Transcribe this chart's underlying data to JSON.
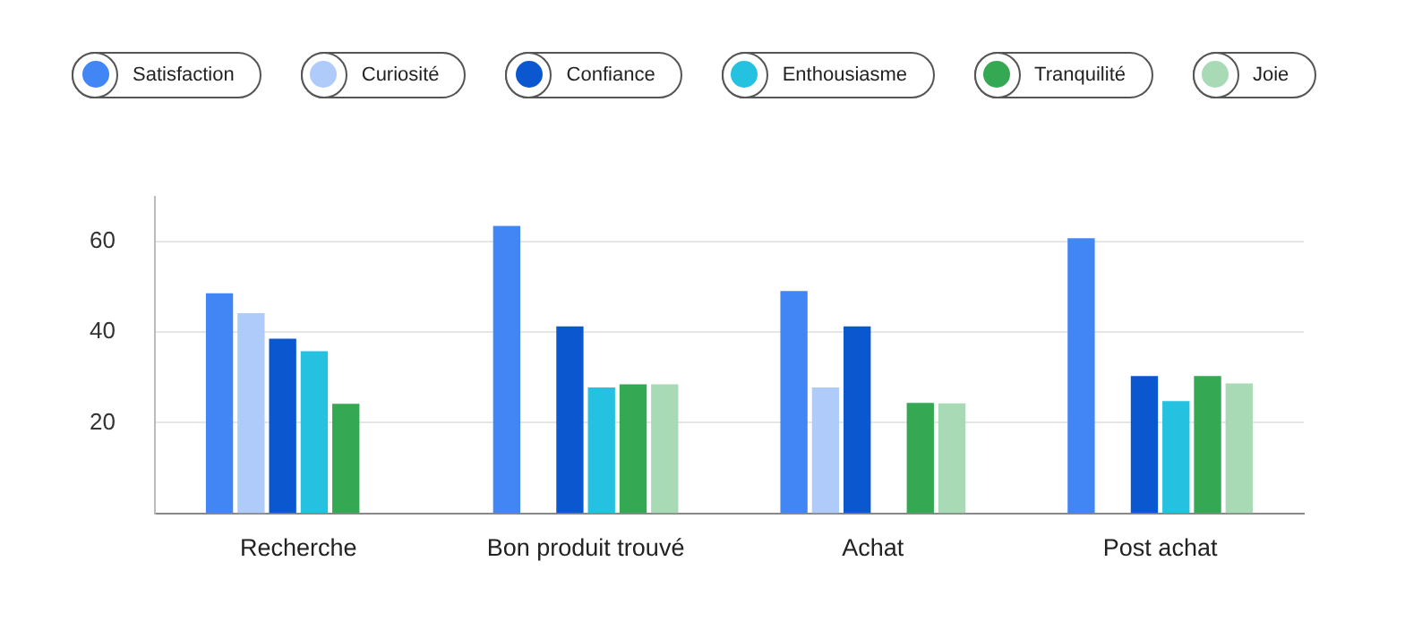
{
  "chart_data": {
    "type": "bar",
    "categories": [
      "Recherche",
      "Bon produit trouvé",
      "Achat",
      "Post achat"
    ],
    "series": [
      {
        "name": "Satisfaction",
        "color": "#4285f4",
        "values": [
          48.6,
          63.5,
          49.1,
          60.8
        ]
      },
      {
        "name": "Curiosité",
        "color": "#aecbfa",
        "values": [
          44.2,
          null,
          27.8,
          null
        ]
      },
      {
        "name": "Confiance",
        "color": "#0b57d0",
        "values": [
          38.6,
          41.3,
          41.3,
          30.3
        ]
      },
      {
        "name": "Enthousiasme",
        "color": "#24c1e0",
        "values": [
          35.8,
          27.8,
          null,
          24.8
        ]
      },
      {
        "name": "Tranquilité",
        "color": "#34a853",
        "values": [
          24.2,
          28.5,
          24.4,
          30.3
        ]
      },
      {
        "name": "Joie",
        "color": "#a8dab5",
        "values": [
          null,
          28.5,
          24.3,
          28.7
        ]
      }
    ],
    "ylim": [
      0,
      70
    ],
    "yticks": [
      20,
      40,
      60
    ],
    "grid": "y",
    "legend": "top"
  }
}
